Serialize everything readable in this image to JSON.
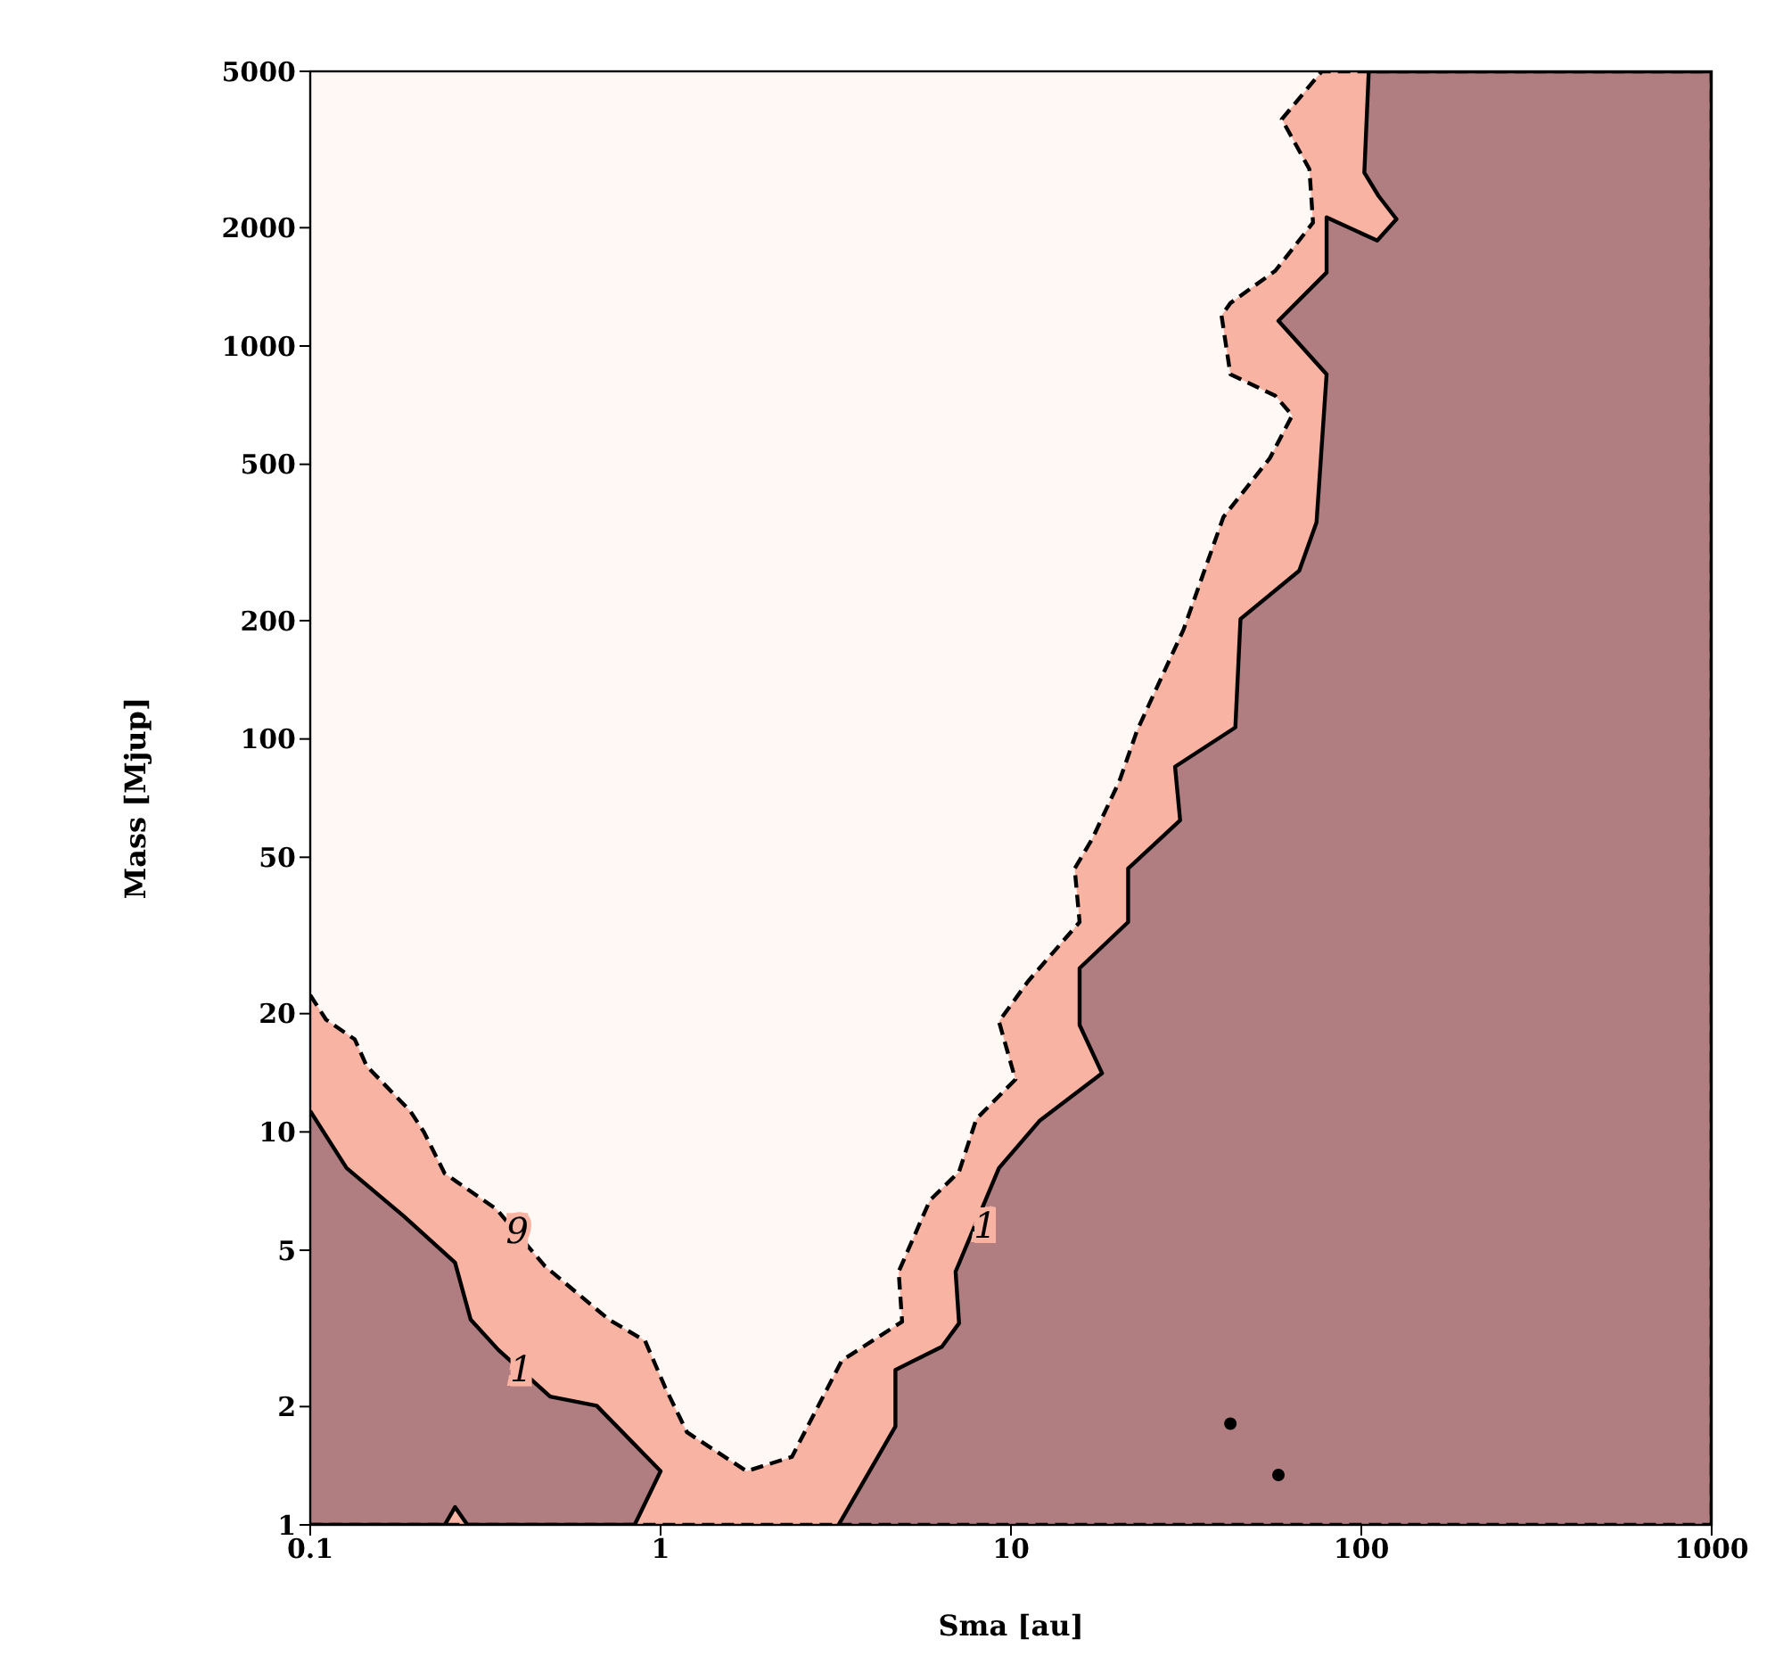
{
  "chart_data": {
    "type": "area",
    "xlabel": "Sma [au]",
    "ylabel": "Mass [Mjup]",
    "log": "xy",
    "xlim": [
      0.1,
      1000
    ],
    "xticks": [
      0.1,
      1,
      10,
      100,
      1000
    ],
    "ylim": [
      1,
      5000
    ],
    "yticks": [
      1,
      2,
      5,
      10,
      20,
      50,
      100,
      200,
      500,
      1000,
      2000,
      5000
    ],
    "annotations": [
      {
        "text": "9",
        "x": 0.39,
        "y": 5.6
      },
      {
        "text": "1",
        "x": 0.4,
        "y": 2.5
      },
      {
        "text": "1",
        "x": 8.44,
        "y": 5.79
      }
    ],
    "series": [
      {
        "color": "#f9b3a3",
        "line_style": "dashed",
        "x": [
          0.1,
          0.111,
          0.134,
          0.145,
          0.193,
          0.211,
          0.242,
          0.34,
          0.468,
          0.712,
          0.903,
          1.03,
          1.19,
          1.76,
          2.37,
          3.29,
          4.89,
          4.78,
          5.87,
          7.11,
          7.97,
          10.3,
          9.24,
          11.2,
          15.7,
          15.2,
          17.1,
          20.4,
          22.9,
          31.1,
          40.4,
          54.8,
          63.5,
          56.8,
          42.3,
          39.9,
          42.3,
          56.8,
          72.8,
          71.1,
          59.3,
          77.1,
          1000,
          1000,
          0.1
        ],
        "values": [
          22.3,
          19.3,
          17.2,
          14.7,
          11.3,
          10,
          7.84,
          6.36,
          4.55,
          3.33,
          2.94,
          2.24,
          1.72,
          1.37,
          1.49,
          2.62,
          3.29,
          4.41,
          6.7,
          7.92,
          10.8,
          13.6,
          19.1,
          24.2,
          34.2,
          46.8,
          55.9,
          78.2,
          105,
          190,
          367,
          518,
          666,
          747,
          847,
          1196,
          1286,
          1553,
          2060,
          2818,
          3776,
          5000,
          5000,
          1,
          1
        ]
      },
      {
        "color": "#b07d81",
        "line_style": "solid",
        "x": [
          3.22,
          4.68,
          4.68,
          6.35,
          7.11,
          6.95,
          9.24,
          12.1,
          18.2,
          15.7,
          15.7,
          21.6,
          21.6,
          30.4,
          29.4,
          43.7,
          45.2,
          66.5,
          74.5,
          79.6,
          58,
          79.6,
          79.6,
          111,
          126,
          112,
          102,
          105,
          1000,
          1000
        ],
        "values": [
          1,
          1.78,
          2.48,
          2.84,
          3.26,
          4.41,
          8.09,
          10.7,
          14.1,
          18.7,
          26.1,
          34.2,
          46.8,
          62.1,
          85,
          107,
          202,
          268,
          356,
          847,
          1159,
          1538,
          2125,
          1855,
          2103,
          2409,
          2760,
          5000,
          5000,
          1
        ]
      },
      {
        "color": "#b07d81",
        "line_style": "solid",
        "x": [
          0.1,
          0.127,
          0.185,
          0.259,
          0.287,
          0.344,
          0.484,
          0.657,
          1,
          0.843,
          0.281,
          0.259,
          0.242,
          0.1
        ],
        "values": [
          11.3,
          8.09,
          6.1,
          4.65,
          3.33,
          2.79,
          2.12,
          2.01,
          1.37,
          1,
          1,
          1.11,
          1,
          1
        ]
      },
      {
        "type": "scatter",
        "color": "#000000",
        "marker": "circle",
        "x": [
          42.3,
          58
        ],
        "values": [
          1.81,
          1.34
        ]
      }
    ]
  }
}
